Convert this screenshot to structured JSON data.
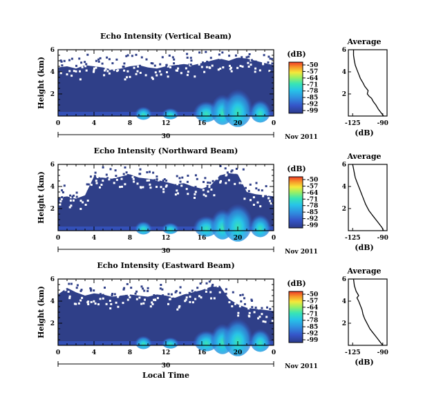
{
  "figure": {
    "xlabel": "Local Time",
    "colorbar_unit": "(dB)",
    "average_title": "Average",
    "date_label": "Nov 2011",
    "day_label": "30"
  },
  "chart_data": [
    {
      "type": "heatmap",
      "title": "Echo Intensity (Vertical Beam)",
      "xlabel": "Local Time",
      "ylabel": "Height (km)",
      "x_ticks": [
        "0",
        "4",
        "8",
        "12",
        "16",
        "20",
        "0"
      ],
      "y_ticks": [
        "2",
        "4",
        "6"
      ],
      "xlim": [
        0,
        24
      ],
      "ylim": [
        0,
        6
      ],
      "echo_top_km": [
        4.4,
        4.5,
        4.3,
        4.6,
        4.5,
        4.4,
        4.2,
        4.3,
        4.5,
        4.6,
        4.4,
        4.3,
        4.5,
        4.6,
        4.7,
        4.6,
        4.8,
        5.0,
        5.2,
        5.0,
        5.3,
        5.2,
        5.0,
        4.8,
        4.6
      ],
      "colorbar": {
        "label": "(dB)",
        "ticks": [
          "-50",
          "-57",
          "-64",
          "-71",
          "-78",
          "-85",
          "-92",
          "-99"
        ]
      },
      "average_profile": {
        "title": "Average",
        "xlabel": "(dB)",
        "x_ticks": [
          "-125",
          "-90"
        ],
        "y_ticks": [
          "2",
          "4",
          "6"
        ],
        "xlim": [
          -130,
          -85
        ],
        "x": [
          -89,
          -92,
          -95,
          -98,
          -101,
          -103,
          -106,
          -108,
          -107,
          -111,
          -113,
          -116,
          -118,
          -120,
          -122,
          -123,
          -124,
          -124
        ],
        "y": [
          0,
          0.3,
          0.6,
          1.0,
          1.3,
          1.6,
          1.8,
          2.0,
          2.3,
          2.7,
          3.0,
          3.4,
          3.8,
          4.2,
          4.6,
          5.0,
          5.5,
          6.0
        ]
      }
    },
    {
      "type": "heatmap",
      "title": "Echo Intensity (Northward Beam)",
      "xlabel": "Local Time",
      "ylabel": "Height (km)",
      "x_ticks": [
        "0",
        "4",
        "8",
        "12",
        "16",
        "20",
        "0"
      ],
      "y_ticks": [
        "2",
        "4",
        "6"
      ],
      "xlim": [
        0,
        24
      ],
      "ylim": [
        0,
        6
      ],
      "echo_top_km": [
        3.0,
        3.1,
        2.9,
        3.2,
        4.9,
        4.8,
        4.7,
        4.9,
        5.1,
        4.8,
        4.7,
        4.6,
        4.4,
        4.2,
        4.3,
        4.0,
        3.8,
        4.1,
        5.0,
        5.2,
        5.1,
        3.5,
        3.3,
        3.2,
        3.1
      ],
      "colorbar": {
        "label": "(dB)",
        "ticks": [
          "-50",
          "-57",
          "-64",
          "-71",
          "-78",
          "-85",
          "-92",
          "-99"
        ]
      },
      "average_profile": {
        "title": "Average",
        "xlabel": "(dB)",
        "x_ticks": [
          "-125",
          "-90"
        ],
        "y_ticks": [
          "2",
          "4",
          "6"
        ],
        "xlim": [
          -130,
          -85
        ],
        "x": [
          -89,
          -91,
          -94,
          -97,
          -100,
          -103,
          -106,
          -108,
          -110,
          -112,
          -114,
          -116,
          -118,
          -120,
          -122,
          -123,
          -124,
          -125
        ],
        "y": [
          0,
          0.3,
          0.6,
          0.9,
          1.2,
          1.5,
          1.8,
          2.1,
          2.4,
          2.8,
          3.2,
          3.6,
          4.0,
          4.4,
          4.8,
          5.2,
          5.6,
          6.0
        ]
      }
    },
    {
      "type": "heatmap",
      "title": "Echo Intensity (Eastward Beam)",
      "xlabel": "Local Time",
      "ylabel": "Height (km)",
      "x_ticks": [
        "0",
        "4",
        "8",
        "12",
        "16",
        "20",
        "0"
      ],
      "y_ticks": [
        "2",
        "4",
        "6"
      ],
      "xlim": [
        0,
        24
      ],
      "ylim": [
        0,
        6
      ],
      "echo_top_km": [
        4.6,
        5.2,
        4.8,
        4.5,
        4.7,
        4.6,
        4.4,
        4.5,
        4.6,
        4.5,
        4.4,
        4.6,
        4.5,
        4.3,
        4.6,
        4.8,
        5.0,
        5.3,
        5.4,
        4.2,
        3.7,
        3.4,
        3.3,
        3.2,
        3.1
      ],
      "colorbar": {
        "label": "(dB)",
        "ticks": [
          "-50",
          "-57",
          "-64",
          "-71",
          "-78",
          "-85",
          "-92",
          "-99"
        ]
      },
      "average_profile": {
        "title": "Average",
        "xlabel": "(dB)",
        "x_ticks": [
          "-125",
          "-90"
        ],
        "y_ticks": [
          "2",
          "4",
          "6"
        ],
        "xlim": [
          -130,
          -85
        ],
        "x": [
          -90,
          -93,
          -96,
          -99,
          -102,
          -105,
          -107,
          -109,
          -111,
          -113,
          -114,
          -116,
          -118,
          -120,
          -118,
          -121,
          -123,
          -124
        ],
        "y": [
          0,
          0.3,
          0.6,
          0.9,
          1.2,
          1.5,
          1.8,
          2.1,
          2.4,
          2.8,
          3.2,
          3.6,
          4.0,
          4.3,
          4.5,
          4.9,
          5.4,
          6.0
        ]
      }
    }
  ],
  "colors": {
    "background_echo": "#2f3f88",
    "colormap": [
      "#2b3a8a",
      "#3555c8",
      "#2f8fe0",
      "#27c4e8",
      "#39e5b4",
      "#9df062",
      "#f5e83a",
      "#f79a2a",
      "#ef3a26"
    ]
  }
}
